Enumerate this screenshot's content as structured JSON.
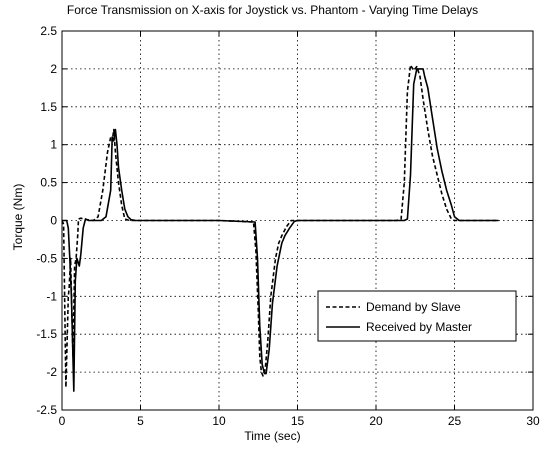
{
  "chart_data": {
    "type": "line",
    "title": "Force Transmission on X-axis for Joystick vs. Phantom - Varying Time Delays",
    "xlabel": "Time (sec)",
    "ylabel": "Torque (Nm)",
    "xlim": [
      0,
      30
    ],
    "ylim": [
      -2.5,
      2.5
    ],
    "xticks": [
      0,
      5,
      10,
      15,
      20,
      25,
      30
    ],
    "yticks": [
      -2.5,
      -2,
      -1.5,
      -1,
      -0.5,
      0,
      0.5,
      1,
      1.5,
      2,
      2.5
    ],
    "grid": true,
    "legend_position": "bottom-right",
    "series": [
      {
        "name": "Demand by Slave",
        "style": "dashed",
        "color": "#000000",
        "x": [
          0,
          0.1,
          0.25,
          0.4,
          0.45,
          0.55,
          0.7,
          0.8,
          0.9,
          1.0,
          1.05,
          1.2,
          1.4,
          1.6,
          2.0,
          2.3,
          2.6,
          2.9,
          3.0,
          3.1,
          3.2,
          3.3,
          3.4,
          3.6,
          3.8,
          4.0,
          4.3,
          5,
          10,
          12.2,
          12.35,
          12.5,
          12.6,
          12.7,
          12.8,
          12.95,
          13.1,
          13.3,
          13.6,
          13.8,
          14.0,
          14.3,
          14.6,
          15,
          21.3,
          21.6,
          21.8,
          22.0,
          22.2,
          22.4,
          22.6,
          22.8,
          23.0,
          23.3,
          23.6,
          23.9,
          24.2,
          24.5,
          24.8,
          25.0,
          27.8
        ],
        "values": [
          0,
          -0.05,
          -2.2,
          -1.0,
          -0.9,
          -0.5,
          -1.8,
          -0.6,
          -0.5,
          -0.2,
          0.02,
          0.03,
          0.02,
          0.01,
          0,
          0.05,
          0.4,
          0.9,
          1.0,
          1.1,
          1.05,
          1.2,
          0.9,
          0.5,
          0.2,
          0.02,
          0,
          0,
          0,
          -0.02,
          -0.4,
          -1.2,
          -1.8,
          -2.0,
          -2.05,
          -1.95,
          -1.6,
          -1.0,
          -0.5,
          -0.3,
          -0.2,
          -0.08,
          0,
          0,
          0,
          0.02,
          0.5,
          1.7,
          2.05,
          1.98,
          2.03,
          1.9,
          1.6,
          1.2,
          0.85,
          0.6,
          0.35,
          0.15,
          0.02,
          0,
          0
        ]
      },
      {
        "name": "Received by Master",
        "style": "solid",
        "color": "#000000",
        "x": [
          0,
          0.1,
          0.3,
          0.4,
          0.5,
          0.6,
          0.75,
          0.85,
          0.95,
          1.1,
          1.2,
          1.35,
          1.5,
          1.7,
          2.0,
          2.5,
          2.8,
          3.1,
          3.2,
          3.3,
          3.4,
          3.5,
          3.6,
          3.8,
          4.0,
          4.2,
          4.4,
          4.7,
          5,
          10,
          12.3,
          12.45,
          12.6,
          12.75,
          12.9,
          13.0,
          13.2,
          13.4,
          13.7,
          14.0,
          14.2,
          14.5,
          14.8,
          15,
          21.8,
          22.0,
          22.2,
          22.4,
          22.6,
          23.0,
          23.1,
          23.3,
          23.6,
          23.9,
          24.2,
          24.5,
          24.8,
          25.0,
          25.3,
          27.8
        ],
        "values": [
          0,
          0,
          0,
          -0.1,
          -0.5,
          -1.0,
          -2.25,
          -0.8,
          -0.5,
          -0.6,
          -0.45,
          -0.1,
          0.02,
          0,
          0,
          0,
          0.05,
          0.4,
          1.1,
          1.05,
          1.2,
          1.0,
          0.7,
          0.4,
          0.15,
          0.05,
          0.01,
          0,
          0,
          0,
          -0.02,
          -0.5,
          -1.4,
          -1.9,
          -2.02,
          -2.02,
          -1.7,
          -1.1,
          -0.6,
          -0.3,
          -0.2,
          -0.1,
          -0.01,
          0,
          0,
          0.02,
          0.6,
          1.8,
          2.0,
          2.0,
          1.9,
          1.75,
          1.35,
          0.95,
          0.65,
          0.4,
          0.2,
          0.05,
          0,
          0
        ]
      }
    ]
  }
}
